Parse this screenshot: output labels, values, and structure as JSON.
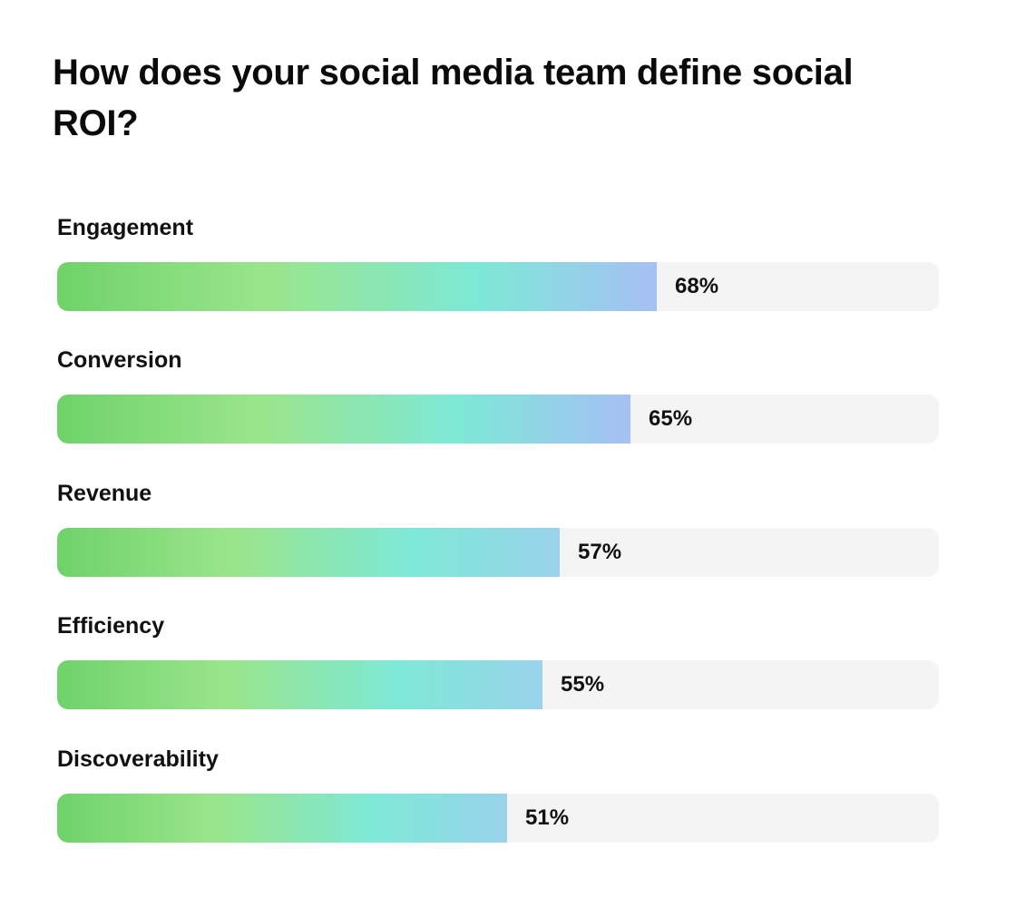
{
  "chart_data": {
    "type": "bar",
    "orientation": "horizontal",
    "title": "How does your social media team define social ROI?",
    "categories": [
      "Engagement",
      "Conversion",
      "Revenue",
      "Efficiency",
      "Discoverability"
    ],
    "values": [
      68,
      65,
      57,
      55,
      51
    ],
    "value_labels": [
      "68%",
      "65%",
      "57%",
      "55%",
      "51%"
    ],
    "unit": "%",
    "xlim": [
      0,
      100
    ],
    "grid": false,
    "legend": "none",
    "colors": {
      "gradient_start": "#6fd26a",
      "gradient_mid_1": "#9ae58b",
      "gradient_mid_2": "#7de8d6",
      "gradient_end": "#a6bff5",
      "track": "#f4f4f4",
      "text": "#111111"
    }
  }
}
